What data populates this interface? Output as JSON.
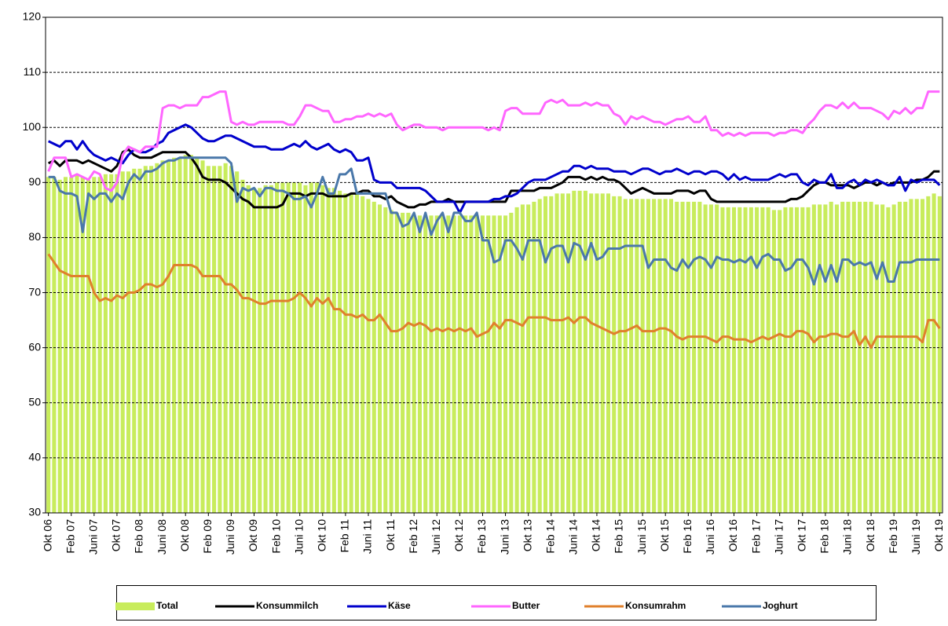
{
  "chart_data": {
    "type": "combo",
    "ylim": [
      30,
      120
    ],
    "yticks": [
      30,
      40,
      50,
      60,
      70,
      80,
      90,
      100,
      110,
      120
    ],
    "grid": true,
    "legend": "bottom",
    "categories": [
      "Okt 06",
      null,
      null,
      null,
      "Feb 07",
      null,
      null,
      null,
      "Juni 07",
      null,
      null,
      null,
      "Okt 07",
      null,
      null,
      null,
      "Feb 08",
      null,
      null,
      null,
      "Juni 08",
      null,
      null,
      null,
      "Okt 08",
      null,
      null,
      null,
      "Feb 09",
      null,
      null,
      null,
      "Juni 09",
      null,
      null,
      null,
      "Okt 09",
      null,
      null,
      null,
      "Feb 10",
      null,
      null,
      null,
      "Juni 10",
      null,
      null,
      null,
      "Okt 10",
      null,
      null,
      null,
      "Feb 11",
      null,
      null,
      null,
      "Juni 11",
      null,
      null,
      null,
      "Okt 11",
      null,
      null,
      null,
      "Feb 12",
      null,
      null,
      null,
      "Juni 12",
      null,
      null,
      null,
      "Okt 12",
      null,
      null,
      null,
      "Feb 13",
      null,
      null,
      null,
      "Juni 13",
      null,
      null,
      null,
      "Okt 13",
      null,
      null,
      null,
      "Feb 14",
      null,
      null,
      null,
      "Juni 14",
      null,
      null,
      null,
      "Okt 14",
      null,
      null,
      null,
      "Feb 15",
      null,
      null,
      null,
      "Juni 15",
      null,
      null,
      null,
      "Okt 15",
      null,
      null,
      null,
      "Feb 16",
      null,
      null,
      null,
      "Juni 16",
      null,
      null,
      null,
      "Okt 16",
      null,
      null,
      null,
      "Feb 17",
      null,
      null,
      null,
      "Juni 17",
      null,
      null,
      null,
      "Okt 17",
      null,
      null,
      null,
      "Feb 18",
      null,
      null,
      null,
      "Juni 18",
      null,
      null,
      null,
      "Okt 18",
      null,
      null,
      null,
      "Feb 19",
      null,
      null,
      null,
      "Juni 19",
      null,
      null,
      null,
      "Okt 19"
    ],
    "series": [
      {
        "name": "Total",
        "type": "bar",
        "color": "#c8ec5c",
        "values": [
          91,
          91,
          90.5,
          91,
          91,
          91.5,
          91,
          90.5,
          91,
          91,
          91.5,
          91.5,
          91.5,
          92,
          92,
          92.5,
          92.5,
          93,
          93,
          93.5,
          94,
          94,
          94.5,
          94.5,
          95,
          95,
          94.5,
          94,
          93,
          93,
          93,
          93.5,
          93,
          92,
          90.5,
          89.5,
          89,
          89,
          89.5,
          89.5,
          90,
          90,
          90,
          90,
          90,
          89.5,
          90,
          90,
          89.5,
          89,
          89,
          88.5,
          88,
          88,
          88,
          87.5,
          87,
          86.5,
          86,
          85.5,
          85,
          84.5,
          84.5,
          84.5,
          84,
          84,
          84,
          84,
          84,
          84,
          84,
          84,
          84,
          84,
          84,
          84,
          84,
          84,
          84,
          84,
          84,
          84.5,
          85.5,
          86,
          86,
          86.5,
          87,
          87.5,
          87.5,
          88,
          88,
          88,
          88.5,
          88.5,
          88.5,
          88,
          88,
          88,
          88,
          87.5,
          87.5,
          87,
          87,
          87,
          87,
          87,
          87,
          87,
          87,
          87,
          86.5,
          86.5,
          86.5,
          86.5,
          86.5,
          86,
          86,
          86,
          85.5,
          85.5,
          85.5,
          85.5,
          85.5,
          85.5,
          85.5,
          85.5,
          85.5,
          85,
          85,
          85.5,
          85.5,
          85.5,
          85.5,
          85.5,
          86,
          86,
          86,
          86.5,
          86,
          86.5,
          86.5,
          86.5,
          86.5,
          86.5,
          86.5,
          86,
          86,
          85.5,
          86,
          86.5,
          86.5,
          87,
          87,
          87,
          87.5,
          88,
          87.5
        ]
      },
      {
        "name": "Konsummilch",
        "type": "line",
        "color": "#000000",
        "values": [
          93.5,
          94,
          93,
          94,
          94,
          94,
          93.5,
          94,
          93.5,
          93,
          92.5,
          92,
          93,
          95.5,
          96,
          95,
          94.5,
          94.5,
          94.5,
          95,
          95.5,
          95.5,
          95.5,
          95.5,
          95.5,
          94.5,
          93,
          91,
          90.5,
          90.5,
          90.5,
          90,
          89,
          88,
          87,
          86.5,
          85.5,
          85.5,
          85.5,
          85.5,
          85.5,
          86,
          88,
          88,
          88,
          87.5,
          88,
          88,
          88,
          87.5,
          87.5,
          87.5,
          87.5,
          88,
          88,
          88.5,
          88.5,
          87.5,
          87.5,
          87,
          87.5,
          86.5,
          86,
          85.5,
          85.5,
          86,
          86,
          86.5,
          86.5,
          86.5,
          87,
          86.5,
          86.5,
          86.5,
          86.5,
          86.5,
          86.5,
          86.5,
          86.5,
          86.5,
          86.5,
          88.5,
          88.5,
          88.5,
          88.5,
          88.5,
          89,
          89,
          89,
          89.5,
          90,
          91,
          91,
          91,
          90.5,
          91,
          90.5,
          91,
          90.5,
          90.5,
          90,
          89,
          88,
          88.5,
          89,
          88.5,
          88,
          88,
          88,
          88,
          88.5,
          88.5,
          88.5,
          88,
          88.5,
          88.5,
          87,
          86.5,
          86.5,
          86.5,
          86.5,
          86.5,
          86.5,
          86.5,
          86.5,
          86.5,
          86.5,
          86.5,
          86.5,
          86.5,
          87,
          87,
          87.5,
          88.5,
          89.5,
          90,
          90,
          89.5,
          89.5,
          89.5,
          89.5,
          89,
          89.5,
          90,
          90,
          89.5,
          90,
          89.5,
          90,
          90,
          90,
          90,
          90.5,
          90.5,
          91,
          92,
          92
        ]
      },
      {
        "name": "Käse",
        "type": "line",
        "color": "#0000cc",
        "values": [
          97.5,
          97,
          96.5,
          97.5,
          97.5,
          96,
          97.5,
          96,
          95,
          94.5,
          94,
          94.5,
          94,
          93.5,
          95,
          96,
          95.5,
          95.5,
          96,
          97,
          97.5,
          99,
          99.5,
          100,
          100.5,
          100,
          99,
          98,
          97.5,
          97.5,
          98,
          98.5,
          98.5,
          98,
          97.5,
          97,
          96.5,
          96.5,
          96.5,
          96,
          96,
          96,
          96.5,
          97,
          96.5,
          97.5,
          96.5,
          96,
          96.5,
          97,
          96,
          95.5,
          96,
          95.5,
          94,
          94,
          94.5,
          90.5,
          90,
          90,
          90,
          89,
          89,
          89,
          89,
          89,
          88.5,
          87.5,
          86.5,
          86.5,
          86.5,
          86.5,
          84.5,
          86.5,
          86.5,
          86.5,
          86.5,
          86.5,
          87,
          87,
          87.5,
          87.5,
          88,
          89,
          90,
          90.5,
          90.5,
          90.5,
          91,
          91.5,
          92,
          92,
          93,
          93,
          92.5,
          93,
          92.5,
          92.5,
          92.5,
          92,
          92,
          92,
          91.5,
          92,
          92.5,
          92.5,
          92,
          91.5,
          92,
          92,
          92.5,
          92,
          91.5,
          92,
          92,
          91.5,
          92,
          92,
          91.5,
          90.5,
          91.5,
          90.5,
          91,
          90.5,
          90.5,
          90.5,
          90.5,
          91,
          91.5,
          91,
          91.5,
          91.5,
          90,
          89.5,
          90.5,
          90,
          90,
          91.5,
          89,
          89,
          90,
          90.5,
          89.5,
          90.5,
          90,
          90.5,
          90,
          89.5,
          89.5,
          91,
          88.5,
          90.5,
          90,
          90.5,
          90.5,
          90.5,
          89.5
        ]
      },
      {
        "name": "Butter",
        "type": "line",
        "color": "#ff66ff",
        "values": [
          92,
          94.5,
          94.5,
          94.5,
          91,
          91.5,
          91,
          90.5,
          92,
          91.5,
          89,
          88.5,
          90,
          95,
          96.5,
          96,
          95.5,
          96.5,
          96.5,
          96.5,
          103.5,
          104,
          104,
          103.5,
          104,
          104,
          104,
          105.5,
          105.5,
          106,
          106.5,
          106.5,
          101,
          100.5,
          101,
          100.5,
          100.5,
          101,
          101,
          101,
          101,
          101,
          100.5,
          100.5,
          102,
          104,
          104,
          103.5,
          103,
          103,
          101,
          101,
          101.5,
          101.5,
          102,
          102,
          102.5,
          102,
          102.5,
          102,
          102.5,
          100.5,
          99.5,
          100,
          100.5,
          100.5,
          100,
          100,
          100,
          99.5,
          100,
          100,
          100,
          100,
          100,
          100,
          100,
          99.5,
          100,
          99.5,
          103,
          103.5,
          103.5,
          102.5,
          102.5,
          102.5,
          102.5,
          104.5,
          105,
          104.5,
          105,
          104,
          104,
          104,
          104.5,
          104,
          104.5,
          104,
          104,
          102.5,
          102,
          100.5,
          102,
          101.5,
          102,
          101.5,
          101,
          101,
          100.5,
          101,
          101.5,
          101.5,
          102,
          101,
          101,
          102,
          99.5,
          99.5,
          98.5,
          99,
          98.5,
          99,
          98.5,
          99,
          99,
          99,
          99,
          98.5,
          99,
          99,
          99.5,
          99.5,
          99,
          100.5,
          101.5,
          103,
          104,
          104,
          103.5,
          104.5,
          103.5,
          104.5,
          103.5,
          103.5,
          103.5,
          103,
          102.5,
          101.5,
          103,
          102.5,
          103.5,
          102.5,
          103.5,
          103.5,
          106.5,
          106.5,
          106.5
        ]
      },
      {
        "name": "Konsumrahm",
        "type": "line",
        "color": "#e0802c",
        "values": [
          77,
          75.5,
          74,
          73.5,
          73,
          73,
          73,
          73,
          70,
          68.5,
          69,
          68.5,
          69.5,
          69,
          70,
          70,
          70.5,
          71.5,
          71.5,
          71,
          71.5,
          73,
          75,
          75,
          75,
          75,
          74.5,
          73,
          73,
          73,
          73,
          71.5,
          71.5,
          70.5,
          69,
          69,
          68.5,
          68,
          68,
          68.5,
          68.5,
          68.5,
          68.5,
          69,
          70,
          69,
          67.5,
          69,
          68,
          69,
          67,
          67,
          66,
          66,
          65.5,
          66,
          65,
          65,
          66,
          64.5,
          63,
          63,
          63.5,
          64.5,
          64,
          64.5,
          64,
          63,
          63.5,
          63,
          63.5,
          63,
          63.5,
          63,
          63.5,
          62,
          62.5,
          63,
          64.5,
          63.5,
          65,
          65,
          64.5,
          64,
          65.5,
          65.5,
          65.5,
          65.5,
          65,
          65,
          65,
          65.5,
          64.5,
          65.5,
          65.5,
          64.5,
          64,
          63.5,
          63,
          62.5,
          63,
          63,
          63.5,
          64,
          63,
          63,
          63,
          63.5,
          63.5,
          63,
          62,
          61.5,
          62,
          62,
          62,
          62,
          61.5,
          61,
          62,
          62,
          61.5,
          61.5,
          61.5,
          61,
          61.5,
          62,
          61.5,
          62,
          62.5,
          62,
          62,
          63,
          63,
          62.5,
          61,
          62,
          62,
          62.5,
          62.5,
          62,
          62,
          63,
          60.5,
          62,
          60,
          62,
          62,
          62,
          62,
          62,
          62,
          62,
          62,
          61,
          65,
          65,
          63.5
        ]
      },
      {
        "name": "Joghurt",
        "type": "line",
        "color": "#4a78aa",
        "values": [
          91,
          91,
          88.5,
          88,
          88,
          87.5,
          81,
          88,
          87,
          88,
          88,
          86.5,
          88,
          87,
          90,
          91.5,
          90.5,
          92,
          92,
          92.5,
          93.5,
          94,
          94,
          94.5,
          94.5,
          94.5,
          94.5,
          94.5,
          94.5,
          94.5,
          94.5,
          94.5,
          93.5,
          86.5,
          89,
          88.5,
          89,
          87.5,
          89,
          89,
          88.5,
          88.5,
          88,
          87,
          87,
          87.5,
          85.5,
          88,
          91,
          88,
          88,
          91.5,
          91.5,
          92.5,
          88,
          88,
          88,
          88,
          88,
          88,
          84.5,
          84.5,
          82,
          82.5,
          84.5,
          81,
          84.5,
          80.5,
          83,
          84.5,
          81,
          84.5,
          84.5,
          83,
          83,
          84.5,
          79.5,
          79.5,
          75.5,
          76,
          79.5,
          79.5,
          78,
          76,
          79.5,
          79.5,
          79.5,
          75.5,
          78,
          78.5,
          78.5,
          75.5,
          79,
          78.5,
          76,
          79,
          76,
          76.5,
          78,
          78,
          78,
          78.5,
          78.5,
          78.5,
          78.5,
          74.5,
          76,
          76,
          76,
          74.5,
          74,
          76,
          74.5,
          76,
          76.5,
          76,
          74.5,
          76.5,
          76,
          76,
          75.5,
          76,
          75.5,
          76.5,
          74.5,
          76.5,
          77,
          76,
          76,
          74,
          74.5,
          76,
          76,
          74.5,
          71.5,
          75,
          72,
          75,
          72,
          76,
          76,
          75,
          75.5,
          75,
          75.5,
          72.5,
          75.5,
          72,
          72,
          75.5,
          75.5,
          75.5,
          76,
          76,
          76,
          76,
          76
        ]
      }
    ]
  }
}
